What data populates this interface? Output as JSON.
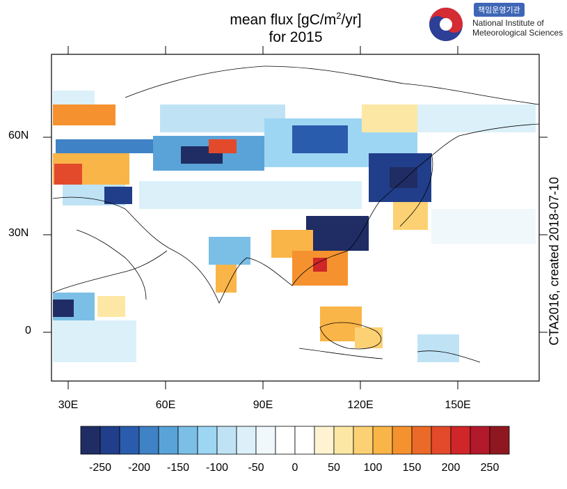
{
  "title": {
    "line1_prefix": "mean flux [gC/m",
    "line1_sup": "2",
    "line1_suffix": "/yr]",
    "line2": "for 2015"
  },
  "logo": {
    "badge_text": "책임운영기관",
    "name_line1": "National Institute of",
    "name_line2": "Meteorological Sciences",
    "icon": "taegeuk-logo-icon"
  },
  "map": {
    "y_ticks": [
      "60N",
      "30N",
      "0"
    ],
    "x_ticks": [
      "30E",
      "60E",
      "90E",
      "120E",
      "150E"
    ],
    "side_label": "CTA2016, created 2018-07-10"
  },
  "colorbar": {
    "labels": [
      "-250",
      "-200",
      "-150",
      "-100",
      "-50",
      "0",
      "50",
      "100",
      "150",
      "200",
      "250"
    ],
    "colors": [
      "#1f2d64",
      "#213e8a",
      "#2a5cad",
      "#3f82c6",
      "#5aa3d8",
      "#7bbfe6",
      "#9dd6f3",
      "#bfe3f5",
      "#dcf0fa",
      "#f0f8fc",
      "#ffffff",
      "#ffffff",
      "#fff3d2",
      "#fde7a4",
      "#fcd173",
      "#fab548",
      "#f5922f",
      "#ec6a28",
      "#e24a2b",
      "#cf262a",
      "#b2192a",
      "#8f1820"
    ]
  }
}
